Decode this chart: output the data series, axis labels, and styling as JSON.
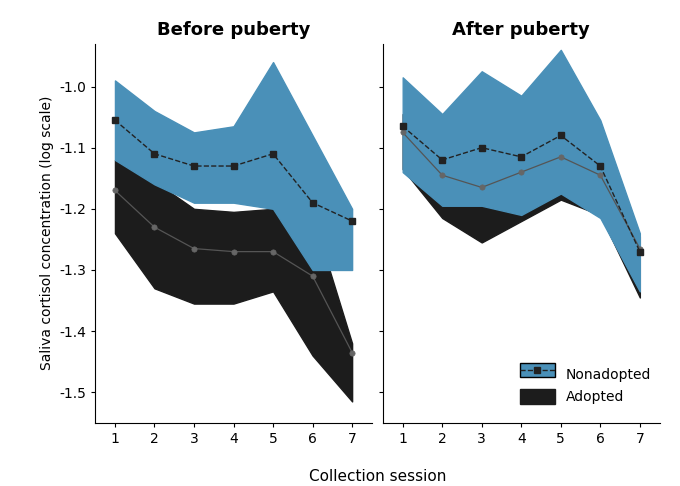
{
  "title_left": "Before puberty",
  "title_right": "After puberty",
  "xlabel": "Collection session",
  "ylabel": "Saliva cortisol concentration (log scale)",
  "ylim": [
    -1.55,
    -0.93
  ],
  "yticks": [
    -1.5,
    -1.4,
    -1.3,
    -1.2,
    -1.1,
    -1.0
  ],
  "before_x": [
    1,
    2,
    3,
    4,
    5,
    6,
    7
  ],
  "before_nonadopted_mean": [
    -1.055,
    -1.11,
    -1.13,
    -1.13,
    -1.11,
    -1.19,
    -1.22
  ],
  "before_nonadopted_upper": [
    -0.99,
    -1.04,
    -1.075,
    -1.065,
    -0.96,
    -1.08,
    -1.2
  ],
  "before_nonadopted_lower": [
    -1.12,
    -1.16,
    -1.19,
    -1.19,
    -1.2,
    -1.3,
    -1.3
  ],
  "before_adopted_mean": [
    -1.17,
    -1.23,
    -1.265,
    -1.27,
    -1.27,
    -1.31,
    -1.435
  ],
  "before_adopted_upper": [
    -1.12,
    -1.155,
    -1.2,
    -1.205,
    -1.2,
    -1.21,
    -1.42
  ],
  "before_adopted_lower": [
    -1.24,
    -1.33,
    -1.355,
    -1.355,
    -1.335,
    -1.44,
    -1.515
  ],
  "after_x": [
    1,
    2,
    3,
    4,
    5,
    6,
    7
  ],
  "after_nonadopted_mean": [
    -1.065,
    -1.12,
    -1.1,
    -1.115,
    -1.08,
    -1.13,
    -1.27
  ],
  "after_nonadopted_upper": [
    -0.985,
    -1.045,
    -0.975,
    -1.015,
    -0.94,
    -1.055,
    -1.24
  ],
  "after_nonadopted_lower": [
    -1.14,
    -1.195,
    -1.195,
    -1.21,
    -1.175,
    -1.215,
    -1.335
  ],
  "after_adopted_mean": [
    -1.075,
    -1.145,
    -1.165,
    -1.14,
    -1.115,
    -1.145,
    -1.265
  ],
  "after_adopted_upper": [
    -1.045,
    -1.09,
    -1.07,
    -1.09,
    -1.065,
    -1.085,
    -1.245
  ],
  "after_adopted_lower": [
    -1.135,
    -1.215,
    -1.255,
    -1.22,
    -1.185,
    -1.21,
    -1.345
  ],
  "blue_color": "#4a90b8",
  "black_color": "#1c1c1c",
  "adopted_line_color": "#555555",
  "nonadopted_line_color": "#222222",
  "marker_adopted_color": "#666666",
  "marker_nonadopted_color": "#222222"
}
